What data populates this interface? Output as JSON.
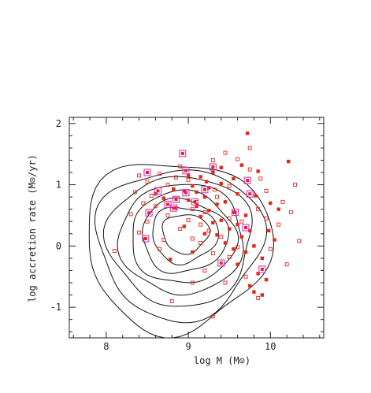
{
  "chart_data": {
    "type": "scatter",
    "title": "",
    "xlabel": "log M (M⊙)",
    "ylabel": "log accretion rate (M⊙/yr)",
    "xlim": [
      7.55,
      10.65
    ],
    "ylim": [
      -1.5,
      2.1
    ],
    "x_ticks": [
      "8",
      "9",
      "10"
    ],
    "y_ticks": [
      "-1",
      "0",
      "1",
      "2"
    ],
    "grid": false,
    "legend": "none",
    "colors": {
      "open": "#e8251c",
      "filled": "#e8251c",
      "highlight": "#d633c8",
      "contour": "#111111"
    },
    "contours": [
      {
        "center": [
          8.95,
          0.2
        ],
        "rx": 0.28,
        "ry": 0.32
      },
      {
        "center": [
          8.93,
          0.18
        ],
        "rx": 0.4,
        "ry": 0.46
      },
      {
        "center": [
          8.92,
          0.15
        ],
        "rx": 0.52,
        "ry": 0.6
      },
      {
        "center": [
          8.9,
          0.12
        ],
        "rx": 0.64,
        "ry": 0.75
      },
      {
        "center": [
          8.88,
          0.1
        ],
        "rx": 0.76,
        "ry": 0.9
      },
      {
        "center": [
          8.86,
          0.07
        ],
        "rx": 0.88,
        "ry": 1.06
      },
      {
        "center": [
          8.84,
          0.03
        ],
        "rx": 1.0,
        "ry": 1.23
      },
      {
        "center": [
          8.8,
          0.0
        ],
        "rx": 1.12,
        "ry": 1.4
      }
    ],
    "series": [
      {
        "marker": "filled-square",
        "points": [
          [
            9.72,
            1.84
          ],
          [
            10.22,
            1.38
          ],
          [
            9.65,
            1.32
          ],
          [
            9.85,
            1.22
          ],
          [
            9.3,
            1.2
          ],
          [
            9.15,
            1.13
          ],
          [
            9.55,
            1.1
          ],
          [
            9.22,
            1.05
          ],
          [
            9.4,
            1.02
          ],
          [
            9.05,
            0.98
          ],
          [
            9.25,
            0.95
          ],
          [
            8.82,
            0.93
          ],
          [
            8.95,
            0.9
          ],
          [
            9.1,
            0.88
          ],
          [
            9.6,
            0.85
          ],
          [
            9.82,
            0.82
          ],
          [
            9.2,
            0.8
          ],
          [
            8.7,
            0.78
          ],
          [
            9.0,
            0.75
          ],
          [
            9.45,
            0.72
          ],
          [
            10.0,
            0.7
          ],
          [
            9.35,
            0.68
          ],
          [
            9.1,
            0.65
          ],
          [
            8.85,
            0.62
          ],
          [
            9.25,
            0.58
          ],
          [
            9.55,
            0.55
          ],
          [
            9.7,
            0.5
          ],
          [
            9.15,
            0.48
          ],
          [
            9.4,
            0.42
          ],
          [
            9.3,
            0.38
          ],
          [
            9.6,
            0.35
          ],
          [
            8.95,
            0.32
          ],
          [
            9.5,
            0.28
          ],
          [
            9.75,
            0.25
          ],
          [
            9.2,
            0.2
          ],
          [
            9.35,
            0.18
          ],
          [
            9.65,
            0.15
          ],
          [
            10.05,
            0.1
          ],
          [
            9.45,
            0.05
          ],
          [
            9.8,
            0.0
          ],
          [
            9.55,
            -0.05
          ],
          [
            9.7,
            -0.1
          ],
          [
            9.9,
            -0.2
          ],
          [
            9.6,
            -0.3
          ],
          [
            9.85,
            -0.45
          ],
          [
            9.95,
            -0.55
          ],
          [
            9.8,
            -0.75
          ],
          [
            9.9,
            -0.8
          ],
          [
            9.75,
            -0.65
          ],
          [
            8.78,
            -0.22
          ],
          [
            9.05,
            -0.1
          ],
          [
            9.4,
            1.28
          ],
          [
            8.6,
            0.85
          ],
          [
            9.0,
            1.15
          ],
          [
            10.1,
            0.6
          ],
          [
            9.98,
            0.25
          ]
        ]
      },
      {
        "marker": "open-square",
        "points": [
          [
            9.75,
            1.6
          ],
          [
            9.45,
            1.52
          ],
          [
            9.3,
            1.4
          ],
          [
            8.9,
            1.3
          ],
          [
            9.6,
            1.42
          ],
          [
            9.88,
            1.1
          ],
          [
            8.65,
            1.18
          ],
          [
            8.4,
            1.15
          ],
          [
            8.5,
            1.05
          ],
          [
            9.0,
            1.08
          ],
          [
            9.5,
            0.98
          ],
          [
            10.3,
            1.0
          ],
          [
            8.75,
            1.0
          ],
          [
            9.32,
            0.92
          ],
          [
            8.35,
            0.88
          ],
          [
            8.55,
            0.82
          ],
          [
            9.95,
            0.9
          ],
          [
            10.15,
            0.72
          ],
          [
            8.45,
            0.7
          ],
          [
            8.6,
            0.65
          ],
          [
            9.05,
            0.6
          ],
          [
            9.2,
            0.55
          ],
          [
            9.85,
            0.6
          ],
          [
            10.25,
            0.55
          ],
          [
            8.3,
            0.52
          ],
          [
            8.75,
            0.5
          ],
          [
            9.5,
            0.45
          ],
          [
            9.0,
            0.42
          ],
          [
            8.5,
            0.4
          ],
          [
            9.15,
            0.35
          ],
          [
            9.65,
            0.4
          ],
          [
            8.9,
            0.28
          ],
          [
            9.25,
            0.25
          ],
          [
            8.4,
            0.22
          ],
          [
            9.4,
            0.15
          ],
          [
            9.05,
            0.12
          ],
          [
            8.7,
            0.1
          ],
          [
            9.15,
            0.05
          ],
          [
            9.6,
            -0.02
          ],
          [
            10.0,
            -0.05
          ],
          [
            10.35,
            0.08
          ],
          [
            8.65,
            -0.05
          ],
          [
            9.3,
            -0.12
          ],
          [
            9.5,
            -0.18
          ],
          [
            10.2,
            -0.3
          ],
          [
            9.7,
            -0.5
          ],
          [
            9.45,
            -0.6
          ],
          [
            9.2,
            -0.4
          ],
          [
            9.05,
            -0.6
          ],
          [
            8.8,
            -0.9
          ],
          [
            9.3,
            -1.15
          ],
          [
            8.1,
            -0.08
          ],
          [
            9.85,
            -0.85
          ],
          [
            9.75,
            1.25
          ],
          [
            10.1,
            0.35
          ],
          [
            9.95,
            0.45
          ],
          [
            8.85,
            1.12
          ],
          [
            9.35,
            0.8
          ],
          [
            9.1,
            0.72
          ]
        ]
      },
      {
        "marker": "highlight-square",
        "points": [
          [
            8.93,
            1.51
          ],
          [
            8.97,
            1.23
          ],
          [
            9.3,
            1.29
          ],
          [
            8.5,
            1.2
          ],
          [
            9.72,
            1.07
          ],
          [
            9.75,
            0.85
          ],
          [
            9.2,
            0.92
          ],
          [
            8.63,
            0.9
          ],
          [
            8.97,
            0.87
          ],
          [
            8.85,
            0.76
          ],
          [
            8.75,
            0.68
          ],
          [
            9.08,
            0.72
          ],
          [
            8.82,
            0.62
          ],
          [
            9.57,
            0.55
          ],
          [
            8.52,
            0.54
          ],
          [
            9.7,
            0.3
          ],
          [
            8.48,
            0.12
          ],
          [
            9.4,
            -0.28
          ],
          [
            9.9,
            -0.38
          ]
        ]
      }
    ]
  }
}
